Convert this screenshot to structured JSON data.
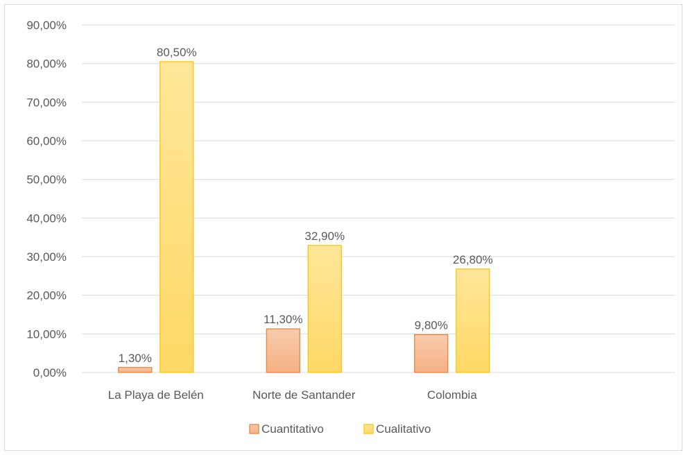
{
  "chart_data": {
    "type": "bar",
    "categories": [
      "La Playa de Belén",
      "Norte de Santander",
      "Colombia"
    ],
    "series": [
      {
        "name": "Cuantitativo",
        "values": [
          1.3,
          11.3,
          9.8
        ],
        "labels": [
          "1,30%",
          "11,30%",
          "9,80%"
        ],
        "color": "#f4b183",
        "color_light": "#f8cbad",
        "stroke": "#ed7d31"
      },
      {
        "name": "Cualitativo",
        "values": [
          80.5,
          32.9,
          26.8
        ],
        "labels": [
          "80,50%",
          "32,90%",
          "26,80%"
        ],
        "color": "#ffd966",
        "color_light": "#ffe699",
        "stroke": "#ffc000"
      }
    ],
    "ylim": [
      0,
      90
    ],
    "yticks": [
      0,
      10,
      20,
      30,
      40,
      50,
      60,
      70,
      80,
      90
    ],
    "ytick_labels": [
      "0,00%",
      "10,00%",
      "20,00%",
      "30,00%",
      "40,00%",
      "50,00%",
      "60,00%",
      "70,00%",
      "80,00%",
      "90,00%"
    ],
    "grid": true,
    "legend": "bottom",
    "title": "",
    "xlabel": "",
    "ylabel": ""
  }
}
